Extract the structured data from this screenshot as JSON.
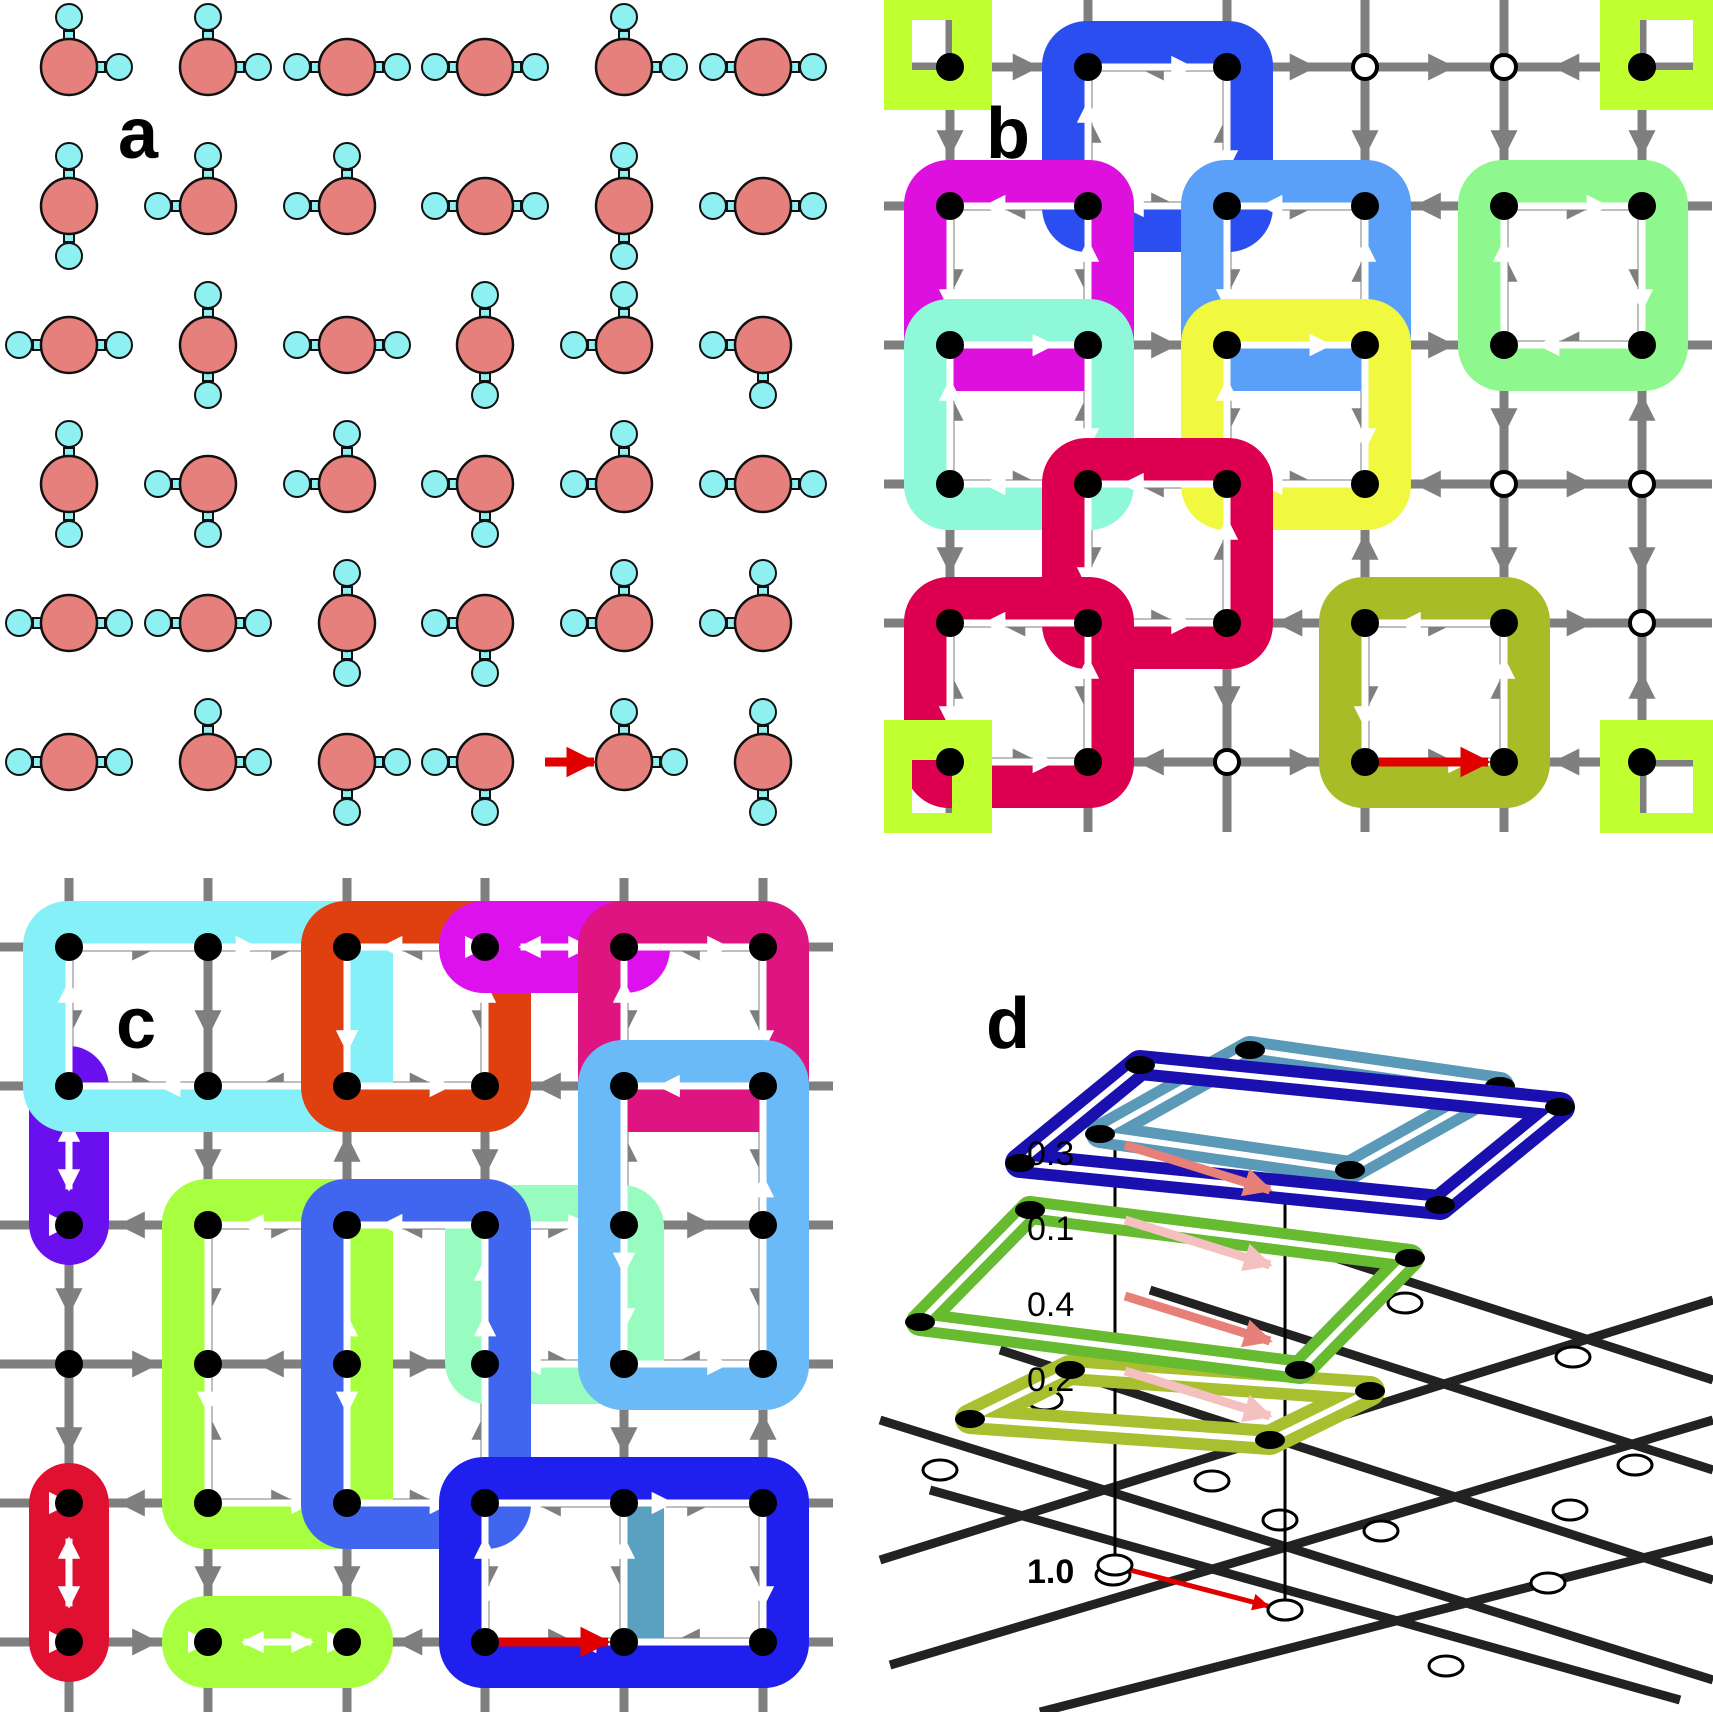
{
  "panels": {
    "a": {
      "label": "a"
    },
    "b": {
      "label": "b"
    },
    "c": {
      "label": "c"
    },
    "d": {
      "label": "d",
      "weights": [
        "0.3",
        "0.1",
        "0.4",
        "0.2",
        "1.0"
      ]
    }
  },
  "colors": {
    "oxygen": "#e5807d",
    "hydrogen": "#8ef0f0",
    "lattice": "#7f7f7f",
    "defect_arrow": "#e00000",
    "loops_b": [
      "#2b4ef0",
      "#dd10dd",
      "#5aa0f8",
      "#8ef88e",
      "#8ef8d8",
      "#f0f840",
      "#de0050",
      "#a8bc28",
      "#c0ff30"
    ],
    "loops_c": [
      "#86f0f8",
      "#e04010",
      "#dd10ee",
      "#de1480",
      "#6a10ee",
      "#6abaf8",
      "#a8ff40",
      "#4066f0",
      "#98fcc0",
      "#5aa0c0",
      "#2020ee",
      "#e01030",
      "#f0b830"
    ],
    "loops_d": [
      "#1a10b0",
      "#5a9ab8",
      "#66bb30",
      "#a8c030"
    ]
  }
}
